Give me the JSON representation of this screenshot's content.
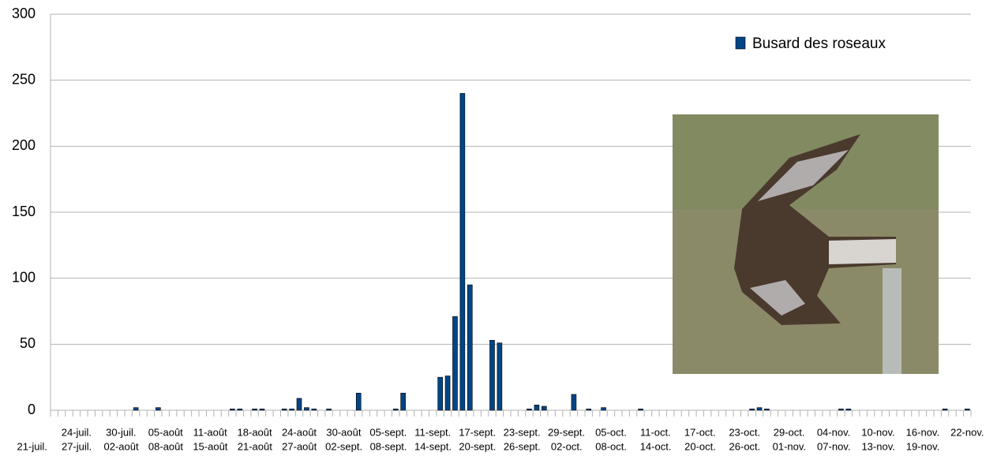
{
  "chart_data": {
    "type": "bar",
    "categories": [
      "21-juil.",
      null,
      null,
      "24-juil.",
      null,
      null,
      "27-juil.",
      null,
      null,
      "30-juil.",
      null,
      null,
      "02-août",
      null,
      null,
      "05-août",
      null,
      null,
      "08-août",
      null,
      null,
      "11-août",
      null,
      null,
      "15-août",
      null,
      null,
      "18-août",
      null,
      null,
      "21-août",
      null,
      null,
      "24-août",
      null,
      null,
      "27-août",
      null,
      null,
      "30-août",
      null,
      null,
      "02-sept.",
      null,
      null,
      "05-sept.",
      null,
      null,
      "08-sept.",
      null,
      null,
      "11-sept.",
      null,
      null,
      "14-sept.",
      null,
      null,
      "17-sept.",
      null,
      null,
      "20-sept.",
      null,
      null,
      "23-sept.",
      null,
      null,
      "26-sept.",
      null,
      null,
      "29-sept.",
      null,
      null,
      "02-oct.",
      null,
      null,
      "05-oct.",
      null,
      null,
      "08-oct.",
      null,
      null,
      "11-oct.",
      null,
      null,
      "14-oct.",
      null,
      null,
      "17-oct.",
      null,
      null,
      "20-oct.",
      null,
      null,
      "23-oct.",
      null,
      null,
      "26-oct.",
      null,
      null,
      "29-oct.",
      null,
      null,
      "01-nov.",
      null,
      null,
      "04-nov.",
      null,
      null,
      "07-nov.",
      null,
      null,
      "10-nov.",
      null,
      null,
      "13-nov.",
      null,
      null,
      "16-nov.",
      null,
      null,
      "19-nov.",
      null,
      null,
      "22-nov."
    ],
    "series": [
      {
        "name": "Busard des roseaux",
        "color": "#004586",
        "values": [
          0,
          0,
          0,
          0,
          0,
          0,
          0,
          0,
          0,
          0,
          0,
          2,
          0,
          0,
          2,
          0,
          0,
          0,
          0,
          0,
          0,
          0,
          0,
          0,
          1,
          1,
          0,
          1,
          1,
          0,
          0,
          1,
          1,
          9,
          2,
          1,
          0,
          1,
          0,
          0,
          0,
          13,
          0,
          0,
          0,
          0,
          1,
          13,
          0,
          0,
          0,
          0,
          25,
          26,
          71,
          240,
          95,
          0,
          0,
          53,
          51,
          0,
          0,
          0,
          1,
          4,
          3,
          0,
          0,
          0,
          12,
          0,
          1,
          0,
          2,
          0,
          0,
          0,
          0,
          1,
          0,
          0,
          0,
          0,
          0,
          0,
          0,
          0,
          0,
          0,
          0,
          0,
          0,
          0,
          1,
          2,
          1,
          0,
          0,
          0,
          0,
          0,
          0,
          0,
          0,
          0,
          1,
          1,
          0,
          0,
          0,
          0,
          0,
          0,
          0,
          0,
          0,
          0,
          0,
          0,
          1,
          0,
          0,
          1
        ]
      }
    ],
    "ylim": [
      0,
      300
    ],
    "yticks": [
      0,
      50,
      100,
      150,
      200,
      250,
      300
    ],
    "grid": true,
    "legend": "top-right"
  }
}
